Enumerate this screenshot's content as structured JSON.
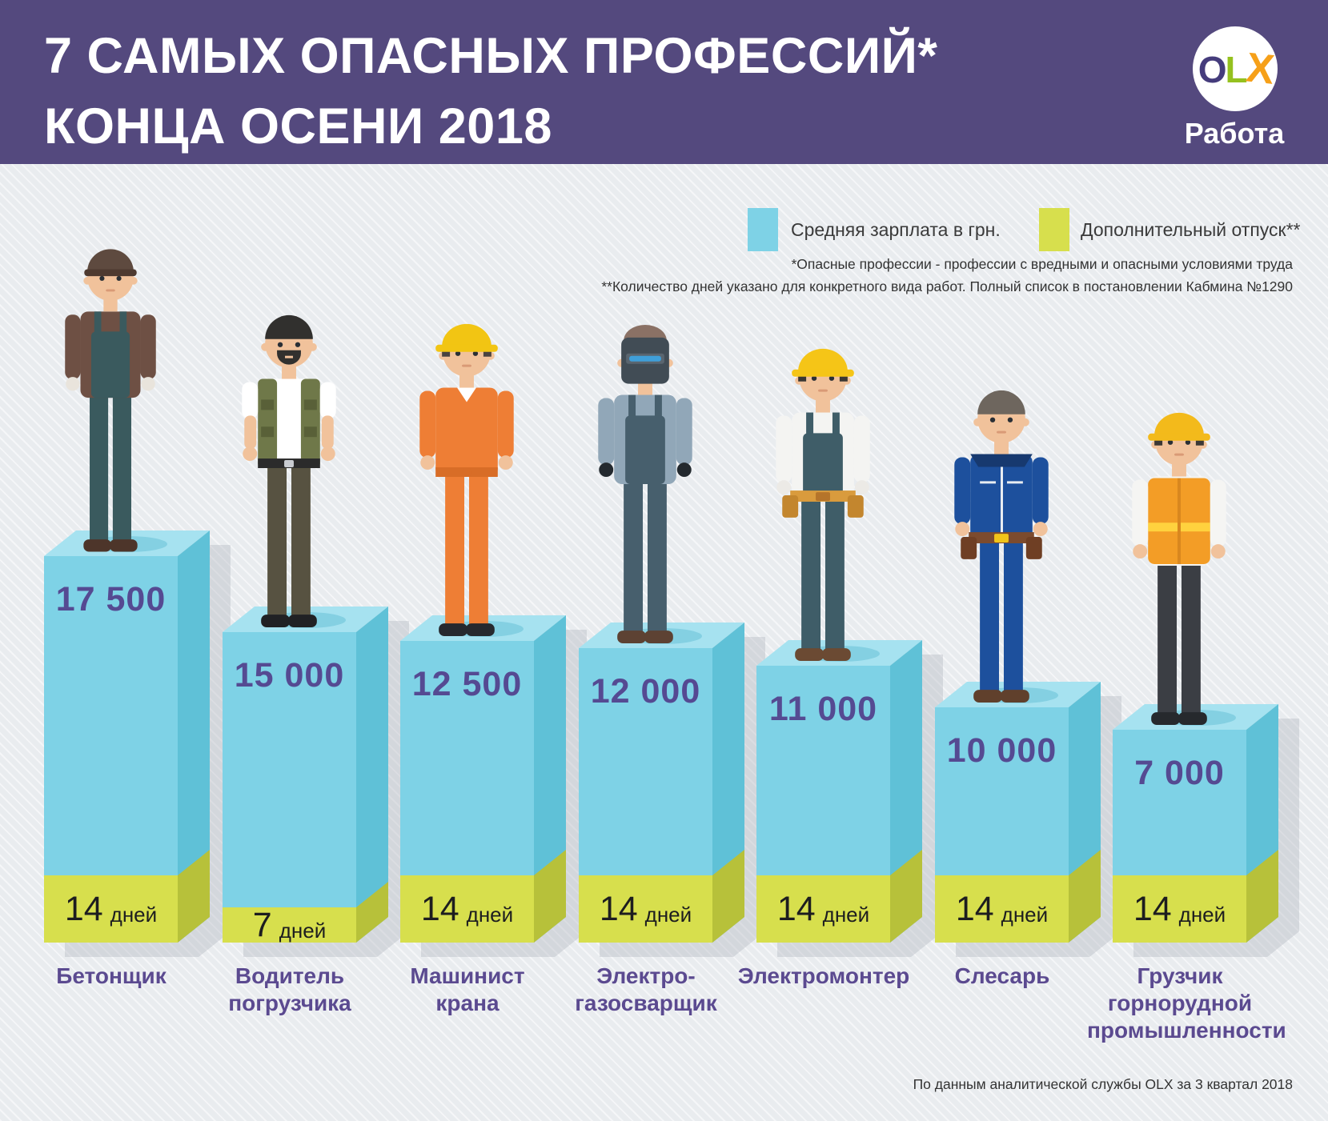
{
  "header": {
    "title_line1": "7 САМЫХ ОПАСНЫХ ПРОФЕССИЙ*",
    "title_line2": "КОНЦА ОСЕНИ 2018",
    "logo": {
      "letters": [
        {
          "char": "O",
          "color": "#453c7c"
        },
        {
          "char": "L",
          "color": "#95c11f"
        },
        {
          "char": "X",
          "color": "#f6a019"
        }
      ],
      "wordmark": "Работа"
    }
  },
  "legend": {
    "salary_label": "Средняя зарплата в грн.",
    "vacation_label": "Дополнительный отпуск**"
  },
  "footnotes": {
    "line1": "*Опасные профессии - профессии с вредными и опасными условиями труда",
    "line2": "**Количество дней указано для конкретного вида работ. Полный список в постановлении Кабмина №1290"
  },
  "footer": {
    "source": "По данным аналитической службы OLX за 3 квартал 2018"
  },
  "colors": {
    "header_bg": "#54497e",
    "background": "#e9ecef",
    "bar_front": "#7ed2e6",
    "bar_top": "#a6e2f0",
    "bar_side": "#5fc1d7",
    "vacation_front": "#d7df4d",
    "vacation_side": "#b7c13a",
    "figure_shadow": "#84d0e2",
    "value_text": "#554a92",
    "label_text": "#5b4a90",
    "days_text": "#1d1d1f"
  },
  "workers": [
    {
      "key": "betonshchik",
      "label": "Бетонщик",
      "salary_display": "17 500",
      "days_value": "14",
      "days_unit": "дней",
      "figure": {
        "skin": "#f1c29b",
        "headgear": "cap",
        "hat": "#5e4a3f",
        "hatBrim": "#4e3a30",
        "hair": "#5e4a3f",
        "shirt": "#6e5044",
        "sleeves": "#6e5044",
        "bib": "#3a5a5e",
        "pants": "#3a5a5e",
        "shoes": "#4d352a",
        "hands": "#e9e4dc"
      }
    },
    {
      "key": "voditel-pogruzchika",
      "label": "Водитель\nпогрузчика",
      "salary_display": "15 000",
      "days_value": "7",
      "days_unit": "дней",
      "figure": {
        "skin": "#f1c29b",
        "headgear": "hair",
        "hair": "#31302e",
        "beard": true,
        "shirt": "#ffffff",
        "sleeves": "#ffffff",
        "shortSleeves": true,
        "vest": "#6f7849",
        "vestPocket": "#596038",
        "belt": "#2b2b2b",
        "buckle": "#c9ccd1",
        "pants": "#575241",
        "shoes": "#202124",
        "hands": "#f1c29b"
      }
    },
    {
      "key": "mashinist-krana",
      "label": "Машинист\nкрана",
      "salary_display": "12 500",
      "days_value": "14",
      "days_unit": "дней",
      "figure": {
        "skin": "#f1c29b",
        "headgear": "hardhat",
        "hat": "#f2c513",
        "hair": "#4a4340",
        "shirt": "#ee7e35",
        "sleeves": "#ee7e35",
        "undershirt": "#ffffff",
        "belt": "#d86d27",
        "buckle": "#d86d27",
        "pants": "#ee7e35",
        "shoes": "#26292e",
        "hands": "#f1c29b"
      }
    },
    {
      "key": "elektro-gazosvarshchik",
      "label": "Электро-\nгазосварщик",
      "salary_display": "12 000",
      "days_value": "14",
      "days_unit": "дней",
      "figure": {
        "skin": "#f1c29b",
        "headgear": "mask",
        "mask": "#414c55",
        "band": "#5a656f",
        "visor": "#3f9fd9",
        "hair": "#8a7165",
        "shirt": "#91a7b8",
        "sleeves": "#91a7b8",
        "bib": "#475f6d",
        "pants": "#475f6d",
        "shoes": "#5d4233",
        "hands": "#23292e"
      }
    },
    {
      "key": "elektromonter",
      "label": "Электромонтер",
      "salary_display": "11 000",
      "days_value": "14",
      "days_unit": "дней",
      "figure": {
        "skin": "#f1c29b",
        "headgear": "hardhat",
        "hat": "#f5c517",
        "hair": "#3a3733",
        "shirt": "#f4f4f2",
        "sleeves": "#f4f4f2",
        "bib": "#3f5d68",
        "toolbelt": {
          "belt": "#d99b3d",
          "pouch": "#c3862e",
          "buckle": "#b5742a"
        },
        "pants": "#3f5d68",
        "shoes": "#6b4a33",
        "hands": "#eceae6"
      }
    },
    {
      "key": "slesar",
      "label": "Слесарь",
      "salary_display": "10 000",
      "days_value": "14",
      "days_unit": "дней",
      "figure": {
        "skin": "#f1c29b",
        "headgear": "hair",
        "hair": "#6e665e",
        "shirt": "#1d509d",
        "sleeves": "#1d509d",
        "collar": "#17396f",
        "zipper": true,
        "toolbelt": {
          "belt": "#7c4b2e",
          "pouch": "#6f3f24",
          "buckle": "#f0c419"
        },
        "pants": "#1d509d",
        "shoes": "#60402c",
        "hands": "#f1c29b"
      }
    },
    {
      "key": "gruzchik-gornorudnoy",
      "label": "Грузчик\nгорнорудной\nпромышленности",
      "salary_display": "7 000",
      "days_value": "14",
      "days_unit": "дней",
      "figure": {
        "skin": "#f1c29b",
        "headgear": "hardhat",
        "hat": "#f3ba1b",
        "hair": "#3c3835",
        "shirt": "#f5f5f3",
        "sleeves": "#f5f5f3",
        "vestFull": "#f39d26",
        "vestStripe": "#ffd23e",
        "vestLine": "#d9871f",
        "pants": "#3b3e44",
        "shoes": "#26292d",
        "hands": "#f1c29b"
      }
    }
  ],
  "chart_data": {
    "type": "bar",
    "title": "7 САМЫХ ОПАСНЫХ ПРОФЕССИЙ* КОНЦА ОСЕНИ 2018",
    "categories": [
      "Бетонщик",
      "Водитель погрузчика",
      "Машинист крана",
      "Электро-газосварщик",
      "Электромонтер",
      "Слесарь",
      "Грузчик горнорудной промышленности"
    ],
    "series": [
      {
        "name": "Средняя зарплата в грн.",
        "values": [
          17500,
          15000,
          12500,
          12000,
          11000,
          10000,
          7000
        ]
      },
      {
        "name": "Дополнительный отпуск**, дней",
        "values": [
          14,
          7,
          14,
          14,
          14,
          14,
          14
        ]
      }
    ],
    "legend_position": "top-right",
    "grid": false,
    "annotations": [
      "*Опасные профессии - профессии с вредными и опасными условиями труда",
      "**Количество дней указано для конкретного вида работ. Полный список в постановлении Кабмина №1290",
      "По данным аналитической службы OLX за 3 квартал 2018"
    ]
  }
}
